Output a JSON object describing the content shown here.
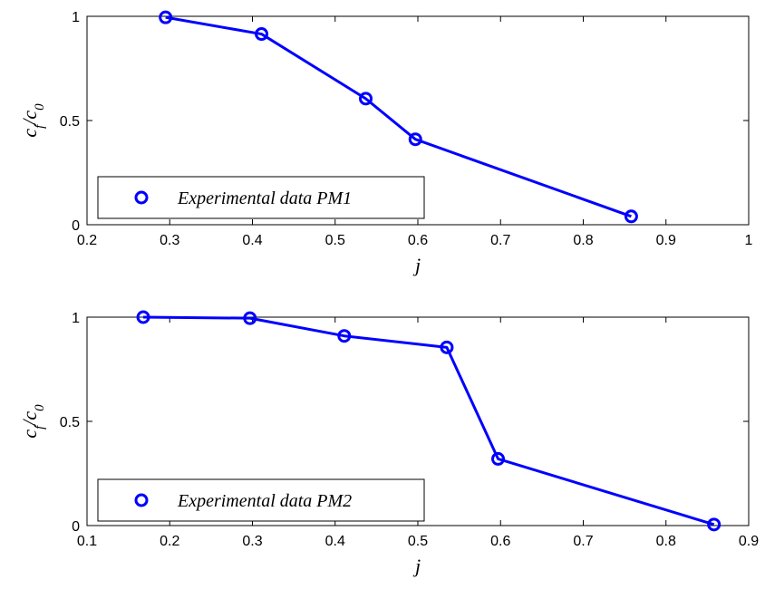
{
  "chart_data": [
    {
      "type": "line",
      "marker": "circle",
      "color": "#0000ff",
      "xlabel": "j",
      "ylabel": {
        "main": "c",
        "sub1": "f",
        "slash": "/c",
        "sub2": "0"
      },
      "xlim": [
        0.2,
        1
      ],
      "ylim": [
        0,
        1
      ],
      "xticks": [
        "0.2",
        "0.3",
        "0.4",
        "0.5",
        "0.6",
        "0.7",
        "0.8",
        "0.9",
        "1"
      ],
      "yticks": [
        "0",
        "0.5",
        "1"
      ],
      "legend": {
        "position": "bottom-left",
        "entries": [
          "Experimental data PM1"
        ]
      },
      "series": [
        {
          "name": "Experimental data PM1",
          "x": [
            0.295,
            0.411,
            0.537,
            0.597,
            0.858
          ],
          "y": [
            0.995,
            0.915,
            0.605,
            0.41,
            0.04
          ]
        }
      ]
    },
    {
      "type": "line",
      "marker": "circle",
      "color": "#0000ff",
      "xlabel": "j",
      "ylabel": {
        "main": "c",
        "sub1": "f",
        "slash": "/c",
        "sub2": "0"
      },
      "xlim": [
        0.1,
        0.9
      ],
      "ylim": [
        0,
        1
      ],
      "xticks": [
        "0.1",
        "0.2",
        "0.3",
        "0.4",
        "0.5",
        "0.6",
        "0.7",
        "0.8",
        "0.9"
      ],
      "yticks": [
        "0",
        "0.5",
        "1"
      ],
      "legend": {
        "position": "bottom-left",
        "entries": [
          "Experimental data PM2"
        ]
      },
      "series": [
        {
          "name": "Experimental data PM2",
          "x": [
            0.168,
            0.297,
            0.411,
            0.535,
            0.597,
            0.858
          ],
          "y": [
            1.0,
            0.995,
            0.91,
            0.855,
            0.32,
            0.005
          ]
        }
      ]
    }
  ]
}
